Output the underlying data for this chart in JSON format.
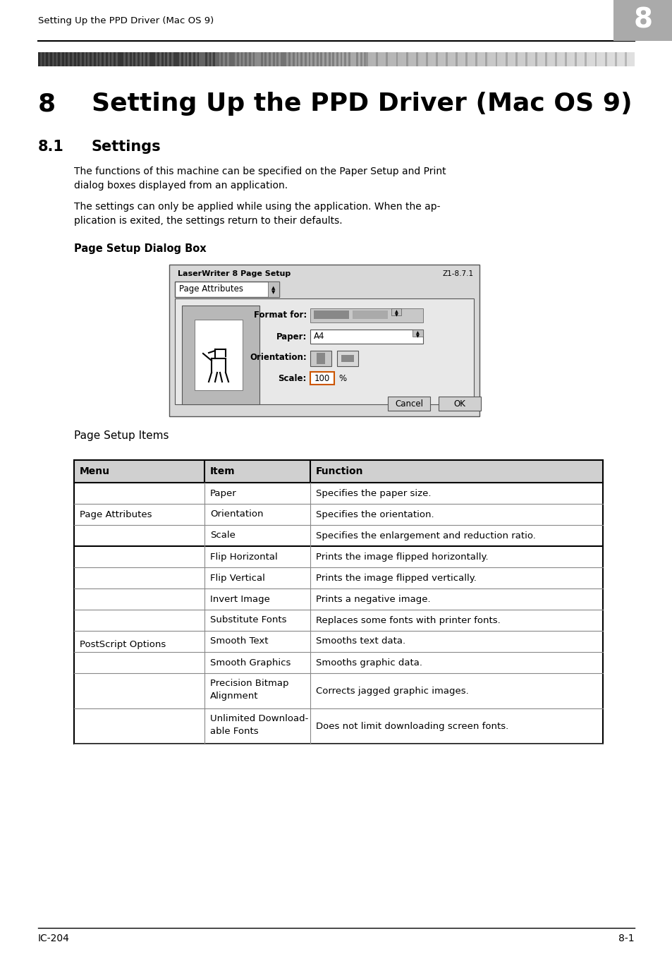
{
  "page_title_small": "Setting Up the PPD Driver (Mac OS 9)",
  "chapter_num": "8",
  "main_title_num": "8",
  "main_title_text": "Setting Up the PPD Driver (Mac OS 9)",
  "section_num": "8.1",
  "section_title": "Settings",
  "para1": "The functions of this machine can be specified on the Paper Setup and Print\ndialog boxes displayed from an application.",
  "para2": "The settings can only be applied while using the application. When the ap-\nplication is exited, the settings return to their defaults.",
  "bold_label": "Page Setup Dialog Box",
  "page_setup_items_label": "Page Setup Items",
  "dlg_title": "LaserWriter 8 Page Setup",
  "dlg_version": "Z1-8.7.1",
  "dlg_tab": "Page Attributes",
  "dlg_format_label": "Format for:",
  "dlg_paper_label": "Paper:",
  "dlg_paper_value": "A4",
  "dlg_orientation_label": "Orientation:",
  "dlg_scale_label": "Scale:",
  "dlg_scale_value": "100",
  "dlg_cancel": "Cancel",
  "dlg_ok": "OK",
  "table_headers": [
    "Menu",
    "Item",
    "Function"
  ],
  "table_rows": [
    [
      "Page Attributes",
      "Paper",
      "Specifies the paper size."
    ],
    [
      "",
      "Orientation",
      "Specifies the orientation."
    ],
    [
      "",
      "Scale",
      "Specifies the enlargement and reduction ratio."
    ],
    [
      "PostScript Options",
      "Flip Horizontal",
      "Prints the image flipped horizontally."
    ],
    [
      "",
      "Flip Vertical",
      "Prints the image flipped vertically."
    ],
    [
      "",
      "Invert Image",
      "Prints a negative image."
    ],
    [
      "",
      "Substitute Fonts",
      "Replaces some fonts with printer fonts."
    ],
    [
      "",
      "Smooth Text",
      "Smooths text data."
    ],
    [
      "",
      "Smooth Graphics",
      "Smooths graphic data."
    ],
    [
      "",
      "Precision Bitmap\nAlignment",
      "Corrects jagged graphic images."
    ],
    [
      "",
      "Unlimited Download-\nable Fonts",
      "Does not limit downloading screen fonts."
    ]
  ],
  "footer_left": "IC-204",
  "footer_right": "8-1"
}
